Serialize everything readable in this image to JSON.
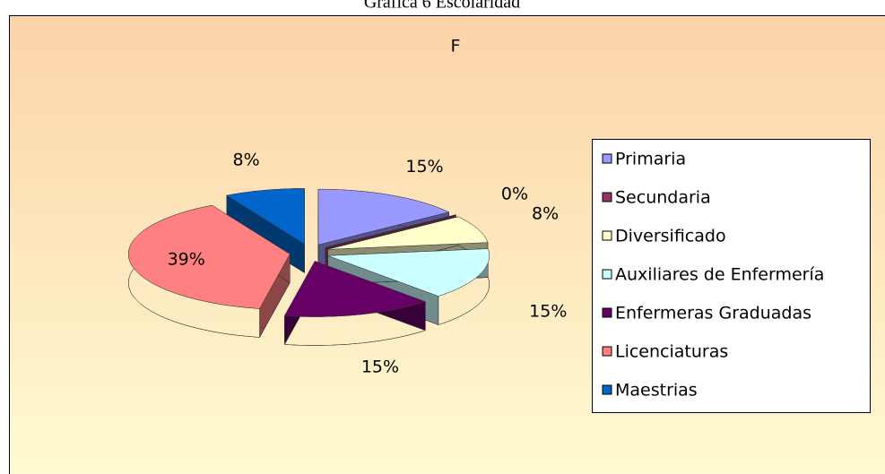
{
  "page_title": "Gráfica 6 Escolaridad",
  "chart_data": {
    "type": "pie3d",
    "title": "F",
    "categories": [
      "Primaria",
      "Secundaria",
      "Diversificado",
      "Auxiliares de Enfermería",
      "Enfermeras Graduadas",
      "Licenciaturas",
      "Maestrias"
    ],
    "values": [
      15,
      0,
      8,
      15,
      15,
      39,
      8
    ],
    "value_labels": [
      "15%",
      "0%",
      "8%",
      "15%",
      "15%",
      "39%",
      "8%"
    ],
    "colors": [
      "#9999ff",
      "#993366",
      "#ffffcc",
      "#ccffff",
      "#660066",
      "#ff8080",
      "#0066cc"
    ],
    "legend": "right"
  }
}
